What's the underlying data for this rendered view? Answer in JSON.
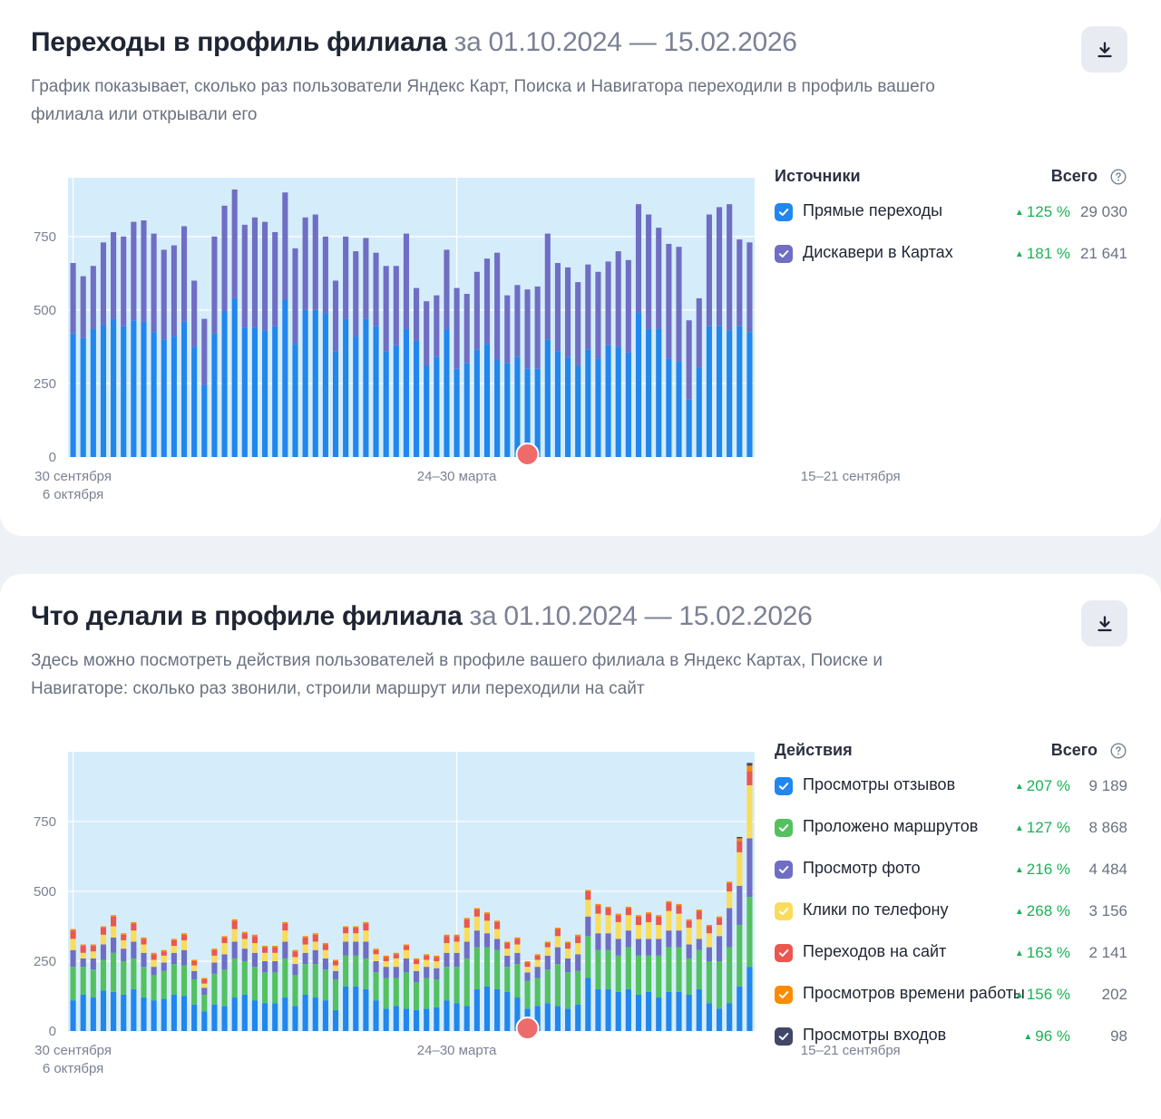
{
  "cards": [
    {
      "title": "Переходы в профиль филиала",
      "period": "за 01.10.2024 — 15.02.2026",
      "subtitle": "График показывает, сколько раз пользователи Яндекс Карт, Поиска и Навигатора переходили в профиль вашего филиала или открывали его",
      "download_icon": "download-icon",
      "legend": {
        "title": "Источники",
        "total_label": "Всего",
        "help_icon": "question-circle-icon",
        "items": [
          {
            "name": "Прямые переходы",
            "pct": "125 %",
            "total": "29 030",
            "color": "#2186ee"
          },
          {
            "name": "Дискавери в Картах",
            "pct": "181 %",
            "total": "21 641",
            "color": "#6f6ec4"
          }
        ]
      },
      "chart_data": {
        "type": "bar",
        "stacked": true,
        "background": "#d5edfb",
        "y_ticks": [
          "0",
          "250",
          "500",
          "750"
        ],
        "ylim": [
          0,
          950
        ],
        "x_tick_labels": [
          {
            "index": 0,
            "lines": [
              "30 сентября",
              "6 октября"
            ]
          },
          {
            "index": 38,
            "lines": [
              "24–30 марта"
            ]
          },
          {
            "index": 77,
            "lines": [
              "15–21 сентября"
            ]
          }
        ],
        "annotation_marker": {
          "index": 45,
          "color": "#ee6b6b"
        },
        "series": [
          {
            "name": "Прямые переходы",
            "color": "#2186ee",
            "values": [
              420,
              405,
              435,
              450,
              470,
              445,
              465,
              460,
              425,
              400,
              410,
              460,
              375,
              245,
              420,
              495,
              540,
              440,
              440,
              430,
              445,
              535,
              385,
              500,
              500,
              490,
              360,
              470,
              410,
              470,
              445,
              360,
              380,
              435,
              395,
              310,
              340,
              435,
              300,
              320,
              365,
              385,
              330,
              320,
              340,
              300,
              300,
              400,
              360,
              340,
              310,
              365,
              335,
              380,
              375,
              355,
              490,
              435,
              435,
              335,
              325,
              195,
              305,
              445,
              445,
              430,
              445,
              425
            ]
          },
          {
            "name": "Дискавери в Картах",
            "color": "#6f6ec4",
            "values": [
              240,
              210,
              215,
              280,
              295,
              305,
              335,
              345,
              335,
              305,
              310,
              325,
              225,
              225,
              330,
              360,
              370,
              350,
              375,
              370,
              320,
              365,
              325,
              315,
              325,
              260,
              240,
              280,
              290,
              275,
              250,
              290,
              270,
              325,
              180,
              220,
              210,
              270,
              275,
              235,
              265,
              290,
              365,
              230,
              245,
              270,
              280,
              360,
              300,
              305,
              285,
              290,
              295,
              285,
              325,
              315,
              370,
              390,
              345,
              390,
              390,
              270,
              235,
              380,
              405,
              430,
              295,
              305
            ]
          }
        ]
      }
    },
    {
      "title": "Что делали в профиле филиала",
      "period": "за 01.10.2024 — 15.02.2026",
      "subtitle": "Здесь можно посмотреть действия пользователей в профиле вашего филиала в Яндекс Картах, Поиске и Навигаторе: сколько раз звонили, строили маршрут или переходили на сайт",
      "download_icon": "download-icon",
      "legend": {
        "title": "Действия",
        "total_label": "Всего",
        "help_icon": "question-circle-icon",
        "items": [
          {
            "name": "Просмотры отзывов",
            "pct": "207 %",
            "total": "9 189",
            "color": "#2186ee"
          },
          {
            "name": "Проложено маршрутов",
            "pct": "127 %",
            "total": "8 868",
            "color": "#54c160"
          },
          {
            "name": "Просмотр фото",
            "pct": "216 %",
            "total": "4 484",
            "color": "#6f6ec4"
          },
          {
            "name": "Клики по телефону",
            "pct": "268 %",
            "total": "3 156",
            "color": "#fadc5c"
          },
          {
            "name": "Переходов на сайт",
            "pct": "163 %",
            "total": "2 141",
            "color": "#e9574f"
          },
          {
            "name": "Просмотров времени работы",
            "pct": "156 %",
            "total": "202",
            "color": "#fb8c00"
          },
          {
            "name": "Просмотры входов",
            "pct": "96 %",
            "total": "98",
            "color": "#414766"
          }
        ]
      },
      "chart_data": {
        "type": "bar",
        "stacked": true,
        "background": "#d5edfb",
        "y_ticks": [
          "0",
          "250",
          "500",
          "750"
        ],
        "ylim": [
          0,
          1000
        ],
        "x_tick_labels": [
          {
            "index": 0,
            "lines": [
              "30 сентября",
              "6 октября"
            ]
          },
          {
            "index": 38,
            "lines": [
              "24–30 марта"
            ]
          },
          {
            "index": 77,
            "lines": [
              "15–21 сентября"
            ]
          }
        ],
        "annotation_marker": {
          "index": 45,
          "color": "#ee6b6b"
        },
        "series": [
          {
            "name": "Просмотры отзывов",
            "color": "#2186ee",
            "values": [
              110,
              130,
              120,
              145,
              140,
              130,
              150,
              120,
              110,
              115,
              130,
              125,
              95,
              70,
              95,
              90,
              120,
              130,
              110,
              100,
              100,
              120,
              90,
              130,
              120,
              110,
              75,
              160,
              160,
              150,
              110,
              80,
              90,
              80,
              75,
              80,
              85,
              110,
              100,
              90,
              150,
              160,
              150,
              140,
              120,
              80,
              90,
              100,
              90,
              80,
              95,
              190,
              150,
              150,
              140,
              150,
              130,
              140,
              120,
              140,
              140,
              130,
              150,
              100,
              80,
              100,
              160,
              230
            ]
          },
          {
            "name": "Проложено маршрутов",
            "color": "#54c160",
            "values": [
              120,
              100,
              100,
              110,
              140,
              120,
              110,
              110,
              90,
              100,
              110,
              110,
              90,
              60,
              110,
              130,
              140,
              120,
              120,
              110,
              110,
              140,
              110,
              110,
              120,
              110,
              110,
              110,
              110,
              110,
              100,
              110,
              100,
              130,
              100,
              110,
              100,
              120,
              130,
              170,
              150,
              140,
              140,
              90,
              120,
              100,
              100,
              120,
              150,
              130,
              120,
              150,
              140,
              140,
              130,
              150,
              140,
              130,
              150,
              160,
              160,
              130,
              140,
              150,
              170,
              200,
              220,
              250
            ]
          },
          {
            "name": "Просмотр фото",
            "color": "#6f6ec4",
            "values": [
              60,
              30,
              40,
              55,
              55,
              45,
              60,
              50,
              30,
              30,
              40,
              55,
              30,
              25,
              40,
              55,
              60,
              45,
              50,
              40,
              40,
              60,
              40,
              40,
              50,
              40,
              30,
              50,
              50,
              60,
              40,
              40,
              40,
              50,
              40,
              40,
              40,
              50,
              50,
              60,
              60,
              50,
              40,
              40,
              40,
              30,
              40,
              50,
              60,
              50,
              60,
              70,
              60,
              60,
              60,
              60,
              60,
              60,
              60,
              60,
              60,
              50,
              40,
              50,
              90,
              140,
              140,
              210
            ]
          },
          {
            "name": "Клики по телефону",
            "color": "#fadc5c",
            "values": [
              40,
              20,
              25,
              35,
              40,
              30,
              40,
              30,
              25,
              25,
              25,
              35,
              20,
              15,
              25,
              40,
              45,
              35,
              35,
              30,
              30,
              40,
              25,
              30,
              30,
              30,
              20,
              30,
              30,
              40,
              25,
              20,
              30,
              30,
              25,
              25,
              25,
              35,
              40,
              50,
              50,
              45,
              35,
              25,
              30,
              20,
              25,
              30,
              40,
              35,
              40,
              60,
              70,
              65,
              60,
              55,
              50,
              60,
              50,
              70,
              60,
              60,
              70,
              50,
              40,
              60,
              120,
              190
            ]
          },
          {
            "name": "Переходов на сайт",
            "color": "#e9574f",
            "values": [
              30,
              25,
              20,
              25,
              35,
              20,
              25,
              20,
              20,
              15,
              20,
              20,
              15,
              15,
              20,
              20,
              30,
              20,
              25,
              20,
              20,
              25,
              20,
              25,
              25,
              20,
              15,
              20,
              20,
              25,
              15,
              15,
              15,
              15,
              15,
              15,
              15,
              25,
              20,
              30,
              25,
              25,
              25,
              20,
              20,
              15,
              15,
              15,
              25,
              20,
              25,
              30,
              30,
              25,
              25,
              25,
              30,
              30,
              30,
              30,
              30,
              25,
              30,
              25,
              25,
              30,
              40,
              50
            ]
          },
          {
            "name": "Просмотров времени работы",
            "color": "#fb8c00",
            "values": [
              5,
              5,
              5,
              5,
              5,
              5,
              5,
              5,
              5,
              5,
              5,
              5,
              5,
              5,
              5,
              5,
              5,
              5,
              5,
              5,
              5,
              5,
              5,
              5,
              5,
              5,
              5,
              5,
              5,
              5,
              5,
              5,
              5,
              5,
              5,
              5,
              5,
              5,
              5,
              5,
              5,
              5,
              5,
              5,
              5,
              5,
              5,
              5,
              5,
              5,
              5,
              5,
              5,
              5,
              5,
              5,
              5,
              5,
              5,
              5,
              5,
              5,
              5,
              5,
              5,
              5,
              10,
              20
            ]
          },
          {
            "name": "Просмотры входов",
            "color": "#414766",
            "values": [
              0,
              0,
              0,
              0,
              0,
              0,
              0,
              0,
              0,
              0,
              0,
              0,
              0,
              0,
              0,
              0,
              0,
              0,
              0,
              0,
              0,
              0,
              0,
              0,
              0,
              0,
              0,
              0,
              0,
              0,
              0,
              0,
              0,
              0,
              0,
              0,
              0,
              0,
              0,
              0,
              0,
              0,
              0,
              0,
              0,
              0,
              0,
              0,
              0,
              0,
              0,
              0,
              0,
              0,
              0,
              0,
              0,
              0,
              0,
              0,
              0,
              0,
              0,
              0,
              0,
              0,
              5,
              10
            ]
          }
        ]
      }
    }
  ]
}
